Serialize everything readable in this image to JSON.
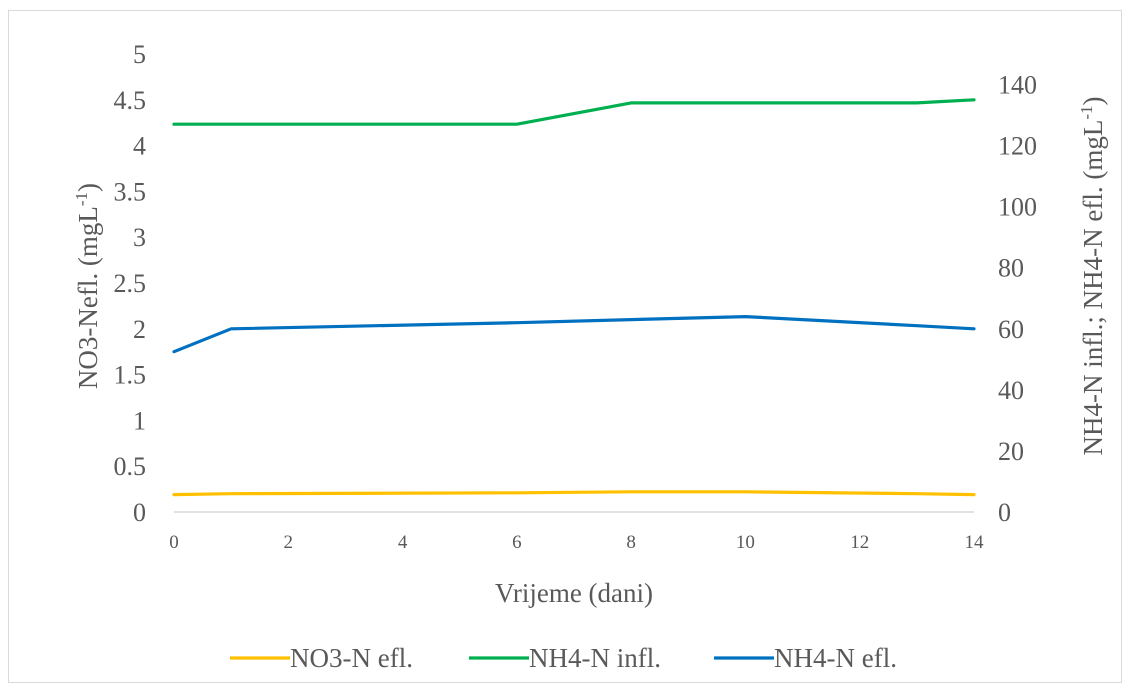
{
  "chart_data": {
    "type": "line",
    "title": "",
    "xlabel": "Vrijeme (dani)",
    "ylabel_left": {
      "main": "NO3-Nefl. (mgL",
      "sup": "-1",
      "end": ")"
    },
    "ylabel_right": {
      "main": "NH4-N infl.; NH4-N efl. (mgL",
      "sup": "-1",
      "end": ")"
    },
    "xlim": [
      0,
      14
    ],
    "ylim_left": [
      0,
      5
    ],
    "ylim_right": [
      0,
      150
    ],
    "x_ticks": [
      "0",
      "2",
      "4",
      "6",
      "8",
      "10",
      "12",
      "14"
    ],
    "y_left_ticks": [
      "0",
      "0.5",
      "1",
      "1.5",
      "2",
      "2.5",
      "3",
      "3.5",
      "4",
      "4.5",
      "5"
    ],
    "y_right_ticks": [
      "0",
      "20",
      "40",
      "60",
      "80",
      "100",
      "120",
      "140"
    ],
    "grid": false,
    "legend_position": "bottom",
    "series": [
      {
        "name": "NO3-N efl.",
        "axis": "left",
        "color": "#FFC000",
        "x": [
          0,
          1,
          6,
          8,
          10,
          13,
          14
        ],
        "y": [
          0.19,
          0.2,
          0.21,
          0.22,
          0.22,
          0.2,
          0.19
        ]
      },
      {
        "name": "NH4-N infl.",
        "axis": "right",
        "color": "#00B050",
        "x": [
          0,
          1,
          6,
          8,
          10,
          13,
          14
        ],
        "y": [
          127,
          127,
          127,
          134,
          134,
          134,
          135
        ]
      },
      {
        "name": "NH4-N efl.",
        "axis": "right",
        "color": "#0070C0",
        "x": [
          0,
          1,
          6,
          8,
          10,
          13,
          14
        ],
        "y": [
          52.5,
          60,
          62,
          63,
          64,
          61,
          60
        ]
      }
    ]
  }
}
